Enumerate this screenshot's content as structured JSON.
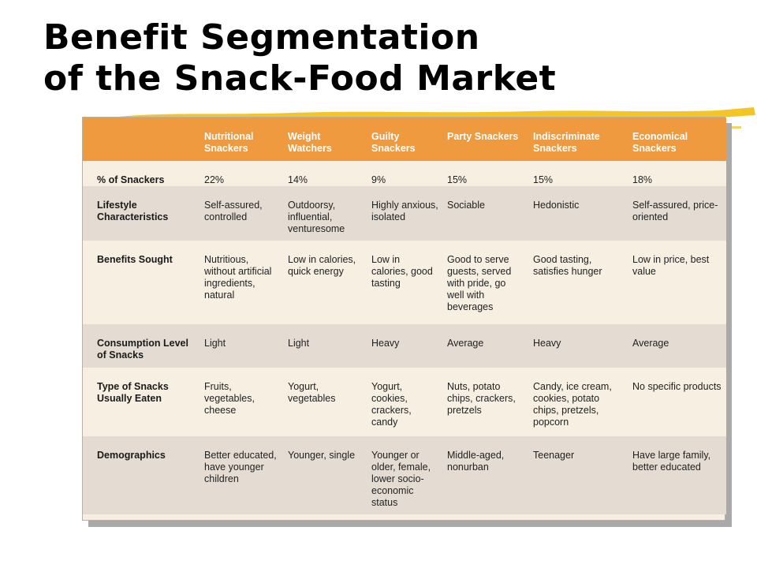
{
  "title": {
    "line1": "Benefit Segmentation",
    "line2": "of the Snack-Food Market"
  },
  "table": {
    "columns": [
      "",
      "Nutritional Snackers",
      "Weight Watchers",
      "Guilty Snackers",
      "Party Snackers",
      "Indiscriminate Snackers",
      "Economical Snackers"
    ],
    "rows": [
      {
        "label": "% of Snackers",
        "cells": [
          "22%",
          "14%",
          "9%",
          "15%",
          "15%",
          "18%"
        ]
      },
      {
        "label": "Lifestyle Characteristics",
        "cells": [
          "Self-assured, controlled",
          "Outdoorsy, influential, venturesome",
          "Highly anxious, isolated",
          "Sociable",
          "Hedonistic",
          "Self-assured, price-oriented"
        ]
      },
      {
        "label": "Benefits Sought",
        "cells": [
          "Nutritious, without artificial ingredients, natural",
          "Low in calories, quick energy",
          "Low in calories, good tasting",
          "Good to serve guests, served with pride, go well with beverages",
          "Good tasting, satisfies hunger",
          "Low in price, best value"
        ]
      },
      {
        "label": "Consumption Level of Snacks",
        "cells": [
          "Light",
          "Light",
          "Heavy",
          "Average",
          "Heavy",
          "Average"
        ]
      },
      {
        "label": "Type of Snacks Usually Eaten",
        "cells": [
          "Fruits, vegetables, cheese",
          "Yogurt, vegetables",
          "Yogurt, cookies, crackers, candy",
          "Nuts, potato chips, crackers, pretzels",
          "Candy, ice cream, cookies, potato chips, pretzels, popcorn",
          "No specific products"
        ]
      },
      {
        "label": "Demographics",
        "cells": [
          "Better educated, have younger children",
          "Younger, single",
          "Younger or older, female, lower socio-economic status",
          "Middle-aged, nonurban",
          "Teenager",
          "Have large family, better educated"
        ]
      }
    ]
  },
  "colors": {
    "header_orange": "#ef9a3f",
    "row_light": "#f6efe2",
    "row_dark": "#e4dcd3",
    "brush_yellow": "#f2c21b"
  }
}
